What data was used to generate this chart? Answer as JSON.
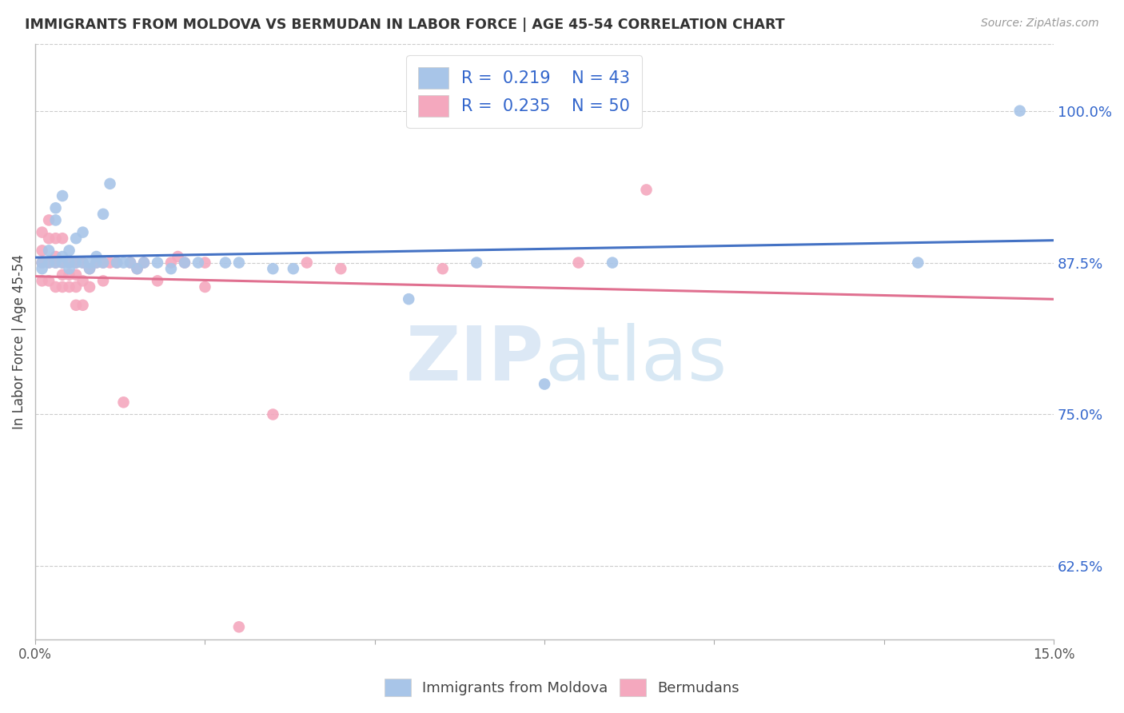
{
  "title": "IMMIGRANTS FROM MOLDOVA VS BERMUDAN IN LABOR FORCE | AGE 45-54 CORRELATION CHART",
  "source": "Source: ZipAtlas.com",
  "ylabel": "In Labor Force | Age 45-54",
  "ytick_labels": [
    "62.5%",
    "75.0%",
    "87.5%",
    "100.0%"
  ],
  "ytick_values": [
    0.625,
    0.75,
    0.875,
    1.0
  ],
  "xlim": [
    0.0,
    0.15
  ],
  "ylim": [
    0.565,
    1.055
  ],
  "legend_R1": "0.219",
  "legend_N1": "43",
  "legend_R2": "0.235",
  "legend_N2": "50",
  "color_moldova": "#a8c5e8",
  "color_bermudan": "#f4a8be",
  "color_line_moldova": "#4472c4",
  "color_line_bermudan": "#e07090",
  "color_text_blue": "#3366cc",
  "moldova_x": [
    0.001,
    0.001,
    0.002,
    0.002,
    0.003,
    0.003,
    0.003,
    0.004,
    0.004,
    0.004,
    0.005,
    0.005,
    0.005,
    0.006,
    0.006,
    0.007,
    0.007,
    0.008,
    0.008,
    0.009,
    0.009,
    0.01,
    0.01,
    0.011,
    0.012,
    0.013,
    0.014,
    0.015,
    0.016,
    0.018,
    0.02,
    0.022,
    0.024,
    0.028,
    0.03,
    0.035,
    0.038,
    0.055,
    0.065,
    0.075,
    0.085,
    0.13,
    0.145
  ],
  "moldova_y": [
    0.875,
    0.87,
    0.885,
    0.875,
    0.92,
    0.91,
    0.875,
    0.93,
    0.88,
    0.875,
    0.885,
    0.875,
    0.87,
    0.895,
    0.875,
    0.9,
    0.875,
    0.875,
    0.87,
    0.88,
    0.875,
    0.915,
    0.875,
    0.94,
    0.875,
    0.875,
    0.875,
    0.87,
    0.875,
    0.875,
    0.87,
    0.875,
    0.875,
    0.875,
    0.875,
    0.87,
    0.87,
    0.845,
    0.875,
    0.775,
    0.875,
    0.875,
    1.0
  ],
  "bermudan_x": [
    0.001,
    0.001,
    0.001,
    0.001,
    0.002,
    0.002,
    0.002,
    0.002,
    0.003,
    0.003,
    0.003,
    0.003,
    0.004,
    0.004,
    0.004,
    0.004,
    0.005,
    0.005,
    0.005,
    0.006,
    0.006,
    0.006,
    0.006,
    0.007,
    0.007,
    0.007,
    0.008,
    0.008,
    0.009,
    0.01,
    0.01,
    0.011,
    0.012,
    0.013,
    0.014,
    0.015,
    0.016,
    0.018,
    0.02,
    0.021,
    0.022,
    0.025,
    0.025,
    0.03,
    0.035,
    0.04,
    0.045,
    0.06,
    0.08,
    0.09
  ],
  "bermudan_y": [
    0.9,
    0.885,
    0.875,
    0.86,
    0.91,
    0.895,
    0.875,
    0.86,
    0.895,
    0.88,
    0.875,
    0.855,
    0.895,
    0.875,
    0.865,
    0.855,
    0.875,
    0.865,
    0.855,
    0.875,
    0.865,
    0.855,
    0.84,
    0.875,
    0.86,
    0.84,
    0.87,
    0.855,
    0.875,
    0.875,
    0.86,
    0.875,
    0.875,
    0.76,
    0.875,
    0.87,
    0.875,
    0.86,
    0.875,
    0.88,
    0.875,
    0.875,
    0.855,
    0.575,
    0.75,
    0.875,
    0.87,
    0.87,
    0.875,
    0.935
  ]
}
